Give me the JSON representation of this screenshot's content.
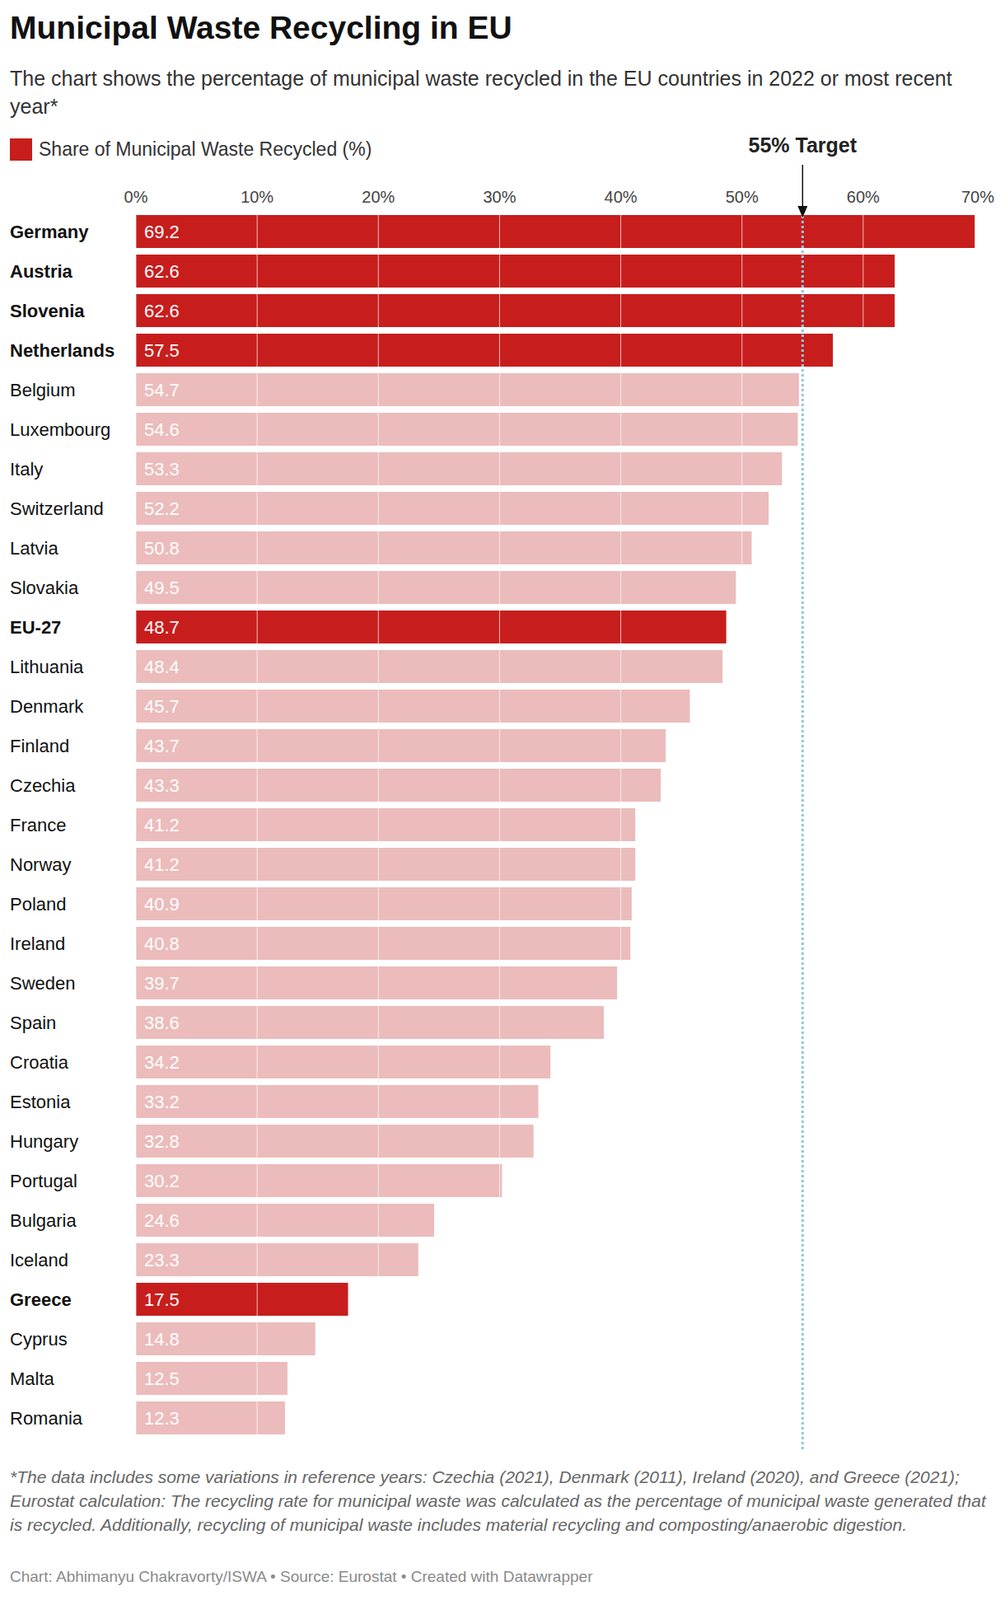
{
  "chart_data": {
    "type": "bar",
    "orientation": "horizontal",
    "title": "Municipal Waste Recycling in EU",
    "subtitle": "The chart shows the percentage of municipal waste recycled in the EU countries in 2022 or most recent year*",
    "categories": [
      "Germany",
      "Austria",
      "Slovenia",
      "Netherlands",
      "Belgium",
      "Luxembourg",
      "Italy",
      "Switzerland",
      "Latvia",
      "Slovakia",
      "EU-27",
      "Lithuania",
      "Denmark",
      "Finland",
      "Czechia",
      "France",
      "Norway",
      "Poland",
      "Ireland",
      "Sweden",
      "Spain",
      "Croatia",
      "Estonia",
      "Hungary",
      "Portugal",
      "Bulgaria",
      "Iceland",
      "Greece",
      "Cyprus",
      "Malta",
      "Romania"
    ],
    "series": [
      {
        "name": "Share of Municipal Waste Recycled (%)",
        "color": "#c71e1d",
        "colors": [
          "#c71e1d",
          "#c71e1d",
          "#c71e1d",
          "#c71e1d",
          "#ebbcbb",
          "#ebbcbb",
          "#ebbcbb",
          "#ebbcbb",
          "#ebbcbb",
          "#ebbcbb",
          "#c71e1d",
          "#ebbcbb",
          "#ebbcbb",
          "#ebbcbb",
          "#ebbcbb",
          "#ebbcbb",
          "#ebbcbb",
          "#ebbcbb",
          "#ebbcbb",
          "#ebbcbb",
          "#ebbcbb",
          "#ebbcbb",
          "#ebbcbb",
          "#ebbcbb",
          "#ebbcbb",
          "#ebbcbb",
          "#ebbcbb",
          "#c71e1d",
          "#ebbcbb",
          "#ebbcbb",
          "#ebbcbb"
        ],
        "values": [
          69.2,
          62.6,
          62.6,
          57.5,
          54.7,
          54.6,
          53.3,
          52.2,
          50.8,
          49.5,
          48.7,
          48.4,
          45.7,
          43.7,
          43.3,
          41.2,
          41.2,
          40.9,
          40.8,
          39.7,
          38.6,
          34.2,
          33.2,
          32.8,
          30.2,
          24.6,
          23.3,
          17.5,
          14.8,
          12.5,
          12.3
        ]
      }
    ],
    "xlim": [
      0,
      70
    ],
    "xticks": [
      {
        "value": 0,
        "label": "0%"
      },
      {
        "value": 10,
        "label": "10%"
      },
      {
        "value": 20,
        "label": "20%"
      },
      {
        "value": 30,
        "label": "30%"
      },
      {
        "value": 40,
        "label": "40%"
      },
      {
        "value": 50,
        "label": "50%"
      },
      {
        "value": 60,
        "label": "60%"
      },
      {
        "value": 70,
        "label": "70%"
      }
    ],
    "grid": true,
    "data_labels": true,
    "annotations": [
      {
        "value": 55,
        "label": "55% Target",
        "color": "#8ec7e6"
      }
    ],
    "note": "*The data includes some variations in reference years: Czechia (2021), Denmark (2011), Ireland (2020), and Greece (2021); Eurostat calculation: The recycling rate for municipal waste was calculated as the percentage of municipal waste generated that is recycled. Additionally, recycling of municipal waste includes material recycling and composting/anaerobic digestion.",
    "source": "Chart: Abhimanyu Chakravorty/ISWA • Source: Eurostat • Created with Datawrapper"
  }
}
